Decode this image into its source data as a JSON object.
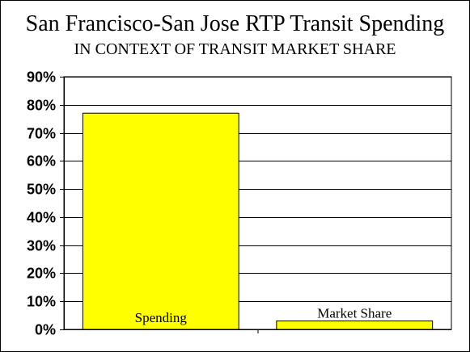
{
  "chart_data": {
    "type": "bar",
    "title": "San Francisco-San Jose RTP Transit Spending",
    "subtitle": "IN CONTEXT OF TRANSIT MARKET SHARE",
    "categories": [
      "Spending",
      "Market Share"
    ],
    "values": [
      77,
      3
    ],
    "ylim": [
      0,
      90
    ],
    "yticks": [
      "0%",
      "10%",
      "20%",
      "30%",
      "40%",
      "50%",
      "60%",
      "70%",
      "80%",
      "90%"
    ],
    "grid": true,
    "bar_color": "#ffff00",
    "legend": "none"
  }
}
